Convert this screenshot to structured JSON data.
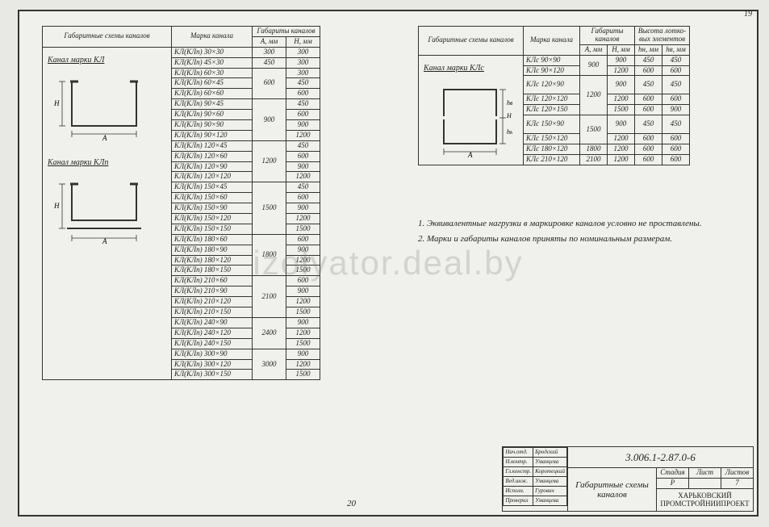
{
  "page_corner": "19",
  "page_bottom": "20",
  "watermark": "izolyator.deal.by",
  "colors": {
    "line": "#333333",
    "bg": "#f0f0ec"
  },
  "tableA": {
    "headers": {
      "scheme": "Габаритные схемы каналов",
      "mark": "Марка канала",
      "gab": "Габариты каналов",
      "A": "A, мм",
      "H": "H, мм"
    },
    "scheme1_title": "Канал марки КЛ",
    "scheme2_title": "Канал марки КЛп",
    "groups": [
      {
        "A": "300",
        "rows": [
          {
            "m": "КЛ(КЛп) 30×30",
            "H": "300"
          }
        ]
      },
      {
        "A": "450",
        "rows": [
          {
            "m": "КЛ(КЛп) 45×30",
            "H": "300"
          }
        ]
      },
      {
        "A": "600",
        "rows": [
          {
            "m": "КЛ(КЛп) 60×30",
            "H": "300"
          },
          {
            "m": "КЛ(КЛп) 60×45",
            "H": "450"
          },
          {
            "m": "КЛ(КЛп) 60×60",
            "H": "600"
          }
        ]
      },
      {
        "A": "900",
        "rows": [
          {
            "m": "КЛ(КЛп) 90×45",
            "H": "450"
          },
          {
            "m": "КЛ(КЛп) 90×60",
            "H": "600"
          },
          {
            "m": "КЛ(КЛп) 90×90",
            "H": "900"
          },
          {
            "m": "КЛ(КЛп) 90×120",
            "H": "1200"
          }
        ]
      },
      {
        "A": "1200",
        "rows": [
          {
            "m": "КЛ(КЛп) 120×45",
            "H": "450"
          },
          {
            "m": "КЛ(КЛп) 120×60",
            "H": "600"
          },
          {
            "m": "КЛ(КЛп) 120×90",
            "H": "900"
          },
          {
            "m": "КЛ(КЛп) 120×120",
            "H": "1200"
          }
        ]
      },
      {
        "A": "1500",
        "rows": [
          {
            "m": "КЛ(КЛп) 150×45",
            "H": "450"
          },
          {
            "m": "КЛ(КЛп) 150×60",
            "H": "600"
          },
          {
            "m": "КЛ(КЛп) 150×90",
            "H": "900"
          },
          {
            "m": "КЛ(КЛп) 150×120",
            "H": "1200"
          },
          {
            "m": "КЛ(КЛп) 150×150",
            "H": "1500"
          }
        ]
      },
      {
        "A": "1800",
        "rows": [
          {
            "m": "КЛ(КЛп) 180×60",
            "H": "600"
          },
          {
            "m": "КЛ(КЛп) 180×90",
            "H": "900"
          },
          {
            "m": "КЛ(КЛп) 180×120",
            "H": "1200"
          },
          {
            "m": "КЛ(КЛп) 180×150",
            "H": "1500"
          }
        ]
      },
      {
        "A": "2100",
        "rows": [
          {
            "m": "КЛ(КЛп) 210×60",
            "H": "600"
          },
          {
            "m": "КЛ(КЛп) 210×90",
            "H": "900"
          },
          {
            "m": "КЛ(КЛп) 210×120",
            "H": "1200"
          },
          {
            "m": "КЛ(КЛп) 210×150",
            "H": "1500"
          }
        ]
      },
      {
        "A": "2400",
        "rows": [
          {
            "m": "КЛ(КЛп) 240×90",
            "H": "900"
          },
          {
            "m": "КЛ(КЛп) 240×120",
            "H": "1200"
          },
          {
            "m": "КЛ(КЛп) 240×150",
            "H": "1500"
          }
        ]
      },
      {
        "A": "3000",
        "rows": [
          {
            "m": "КЛ(КЛп) 300×90",
            "H": "900"
          },
          {
            "m": "КЛ(КЛп) 300×120",
            "H": "1200"
          },
          {
            "m": "КЛ(КЛп) 300×150",
            "H": "1500"
          }
        ]
      }
    ]
  },
  "tableB": {
    "headers": {
      "scheme": "Габаритные схемы каналов",
      "mark": "Марка канала",
      "gab": "Габариты каналов",
      "lot": "Высота лотко-вых элементов",
      "A": "A, мм",
      "H": "H, мм",
      "hn": "hн, мм",
      "hv": "hв, мм"
    },
    "scheme_title": "Канал марки КЛс",
    "groups": [
      {
        "A": "900",
        "rows": [
          {
            "m": "КЛс 90×90",
            "H": "900",
            "hn": "450",
            "hv": "450"
          },
          {
            "m": "КЛс 90×120",
            "H": "1200",
            "hn": "600",
            "hv": "600"
          }
        ]
      },
      {
        "A": "1200",
        "rows": [
          {
            "m": "КЛс 120×90",
            "H": "900",
            "hn": "450",
            "hv": "450"
          },
          {
            "m": "КЛс 120×120",
            "H": "1200",
            "hn": "600",
            "hv": "600"
          },
          {
            "m": "КЛс 120×150",
            "H": "1500",
            "hn": "600",
            "hv": "900"
          }
        ]
      },
      {
        "A": "1500",
        "rows": [
          {
            "m": "КЛс 150×90",
            "H": "900",
            "hn": "450",
            "hv": "450"
          },
          {
            "m": "КЛс 150×120",
            "H": "1200",
            "hn": "600",
            "hv": "600"
          }
        ]
      },
      {
        "A": "1800",
        "rows": [
          {
            "m": "КЛс 180×120",
            "H": "1200",
            "hn": "600",
            "hv": "600"
          }
        ]
      },
      {
        "A": "2100",
        "rows": [
          {
            "m": "КЛс 210×120",
            "H": "1200",
            "hn": "600",
            "hv": "600"
          }
        ]
      }
    ]
  },
  "notes": {
    "n1": "1. Эквивалентные нагрузки в маркировке каналов условно не проставлены.",
    "n2": "2. Марки и габариты каналов приняты по номинальным размерам."
  },
  "titleblock": {
    "roles": [
      {
        "r": "Нач.отд.",
        "n": "Бродский"
      },
      {
        "r": "Н.контр.",
        "n": "Уманцева"
      },
      {
        "r": "Гл.констр.",
        "n": "Коротецкий"
      },
      {
        "r": "Вед.инж.",
        "n": "Уманцева"
      },
      {
        "r": "Исполн.",
        "n": "Гурович"
      },
      {
        "r": "Проверил",
        "n": "Уманцева"
      }
    ],
    "docnum": "3.006.1-2.87.0-6",
    "title": "Габаритные схемы каналов",
    "stage_h": "Стадия",
    "sheet_h": "Лист",
    "sheets_h": "Листов",
    "stage": "Р",
    "sheet": "",
    "sheets": "7",
    "org": "ХАРЬКОВСКИЙ ПРОМСТРОЙНИИПРОЕКТ"
  }
}
